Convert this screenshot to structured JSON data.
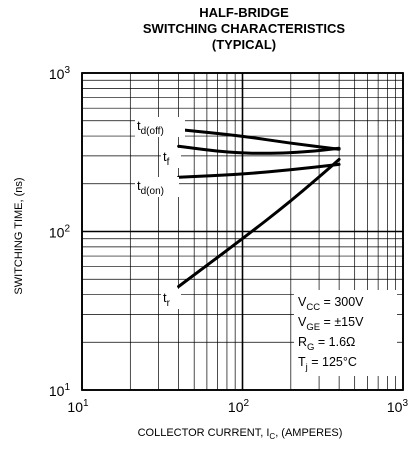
{
  "chart_data": {
    "type": "line",
    "title_lines": [
      "HALF-BRIDGE",
      "SWITCHING CHARACTERISTICS",
      "(TYPICAL)"
    ],
    "xlabel": {
      "main": "COLLECTOR CURRENT, I",
      "sub": "C",
      "after": ", (AMPERES)"
    },
    "ylabel": "SWITCHING TIME, (ns)",
    "x_scale": "log",
    "y_scale": "log",
    "xlim": [
      10,
      1000
    ],
    "ylim": [
      10,
      1000
    ],
    "grid": true,
    "x_ticks": [
      {
        "base": "10",
        "exp": "1",
        "value": 10
      },
      {
        "base": "10",
        "exp": "2",
        "value": 100
      },
      {
        "base": "10",
        "exp": "3",
        "value": 1000
      }
    ],
    "y_ticks": [
      {
        "base": "10",
        "exp": "1",
        "value": 10
      },
      {
        "base": "10",
        "exp": "2",
        "value": 100
      },
      {
        "base": "10",
        "exp": "3",
        "value": 1000
      }
    ],
    "series": [
      {
        "name": "td(off)",
        "label_main": "t",
        "label_sub": "d(off)",
        "x": [
          40,
          100,
          200,
          400
        ],
        "y": [
          440,
          400,
          360,
          330
        ]
      },
      {
        "name": "tf",
        "label_main": "t",
        "label_sub": "f",
        "x": [
          40,
          80,
          150,
          250,
          400
        ],
        "y": [
          345,
          315,
          310,
          318,
          335
        ]
      },
      {
        "name": "td(on)",
        "label_main": "t",
        "label_sub": "d(on)",
        "x": [
          40,
          100,
          200,
          400
        ],
        "y": [
          220,
          230,
          245,
          265
        ]
      },
      {
        "name": "tr",
        "label_main": "t",
        "label_sub": "r",
        "x": [
          40,
          100,
          200,
          400
        ],
        "y": [
          45,
          90,
          155,
          285
        ]
      }
    ],
    "conditions": [
      {
        "main": "V",
        "sub": "CC",
        "rest": " = 300V"
      },
      {
        "main": "V",
        "sub": "GE",
        "rest": " = ±15V"
      },
      {
        "main": "R",
        "sub": "G",
        "rest": " = 1.6Ω"
      },
      {
        "main": "T",
        "sub": "j",
        "rest": " = 125°C"
      }
    ]
  }
}
